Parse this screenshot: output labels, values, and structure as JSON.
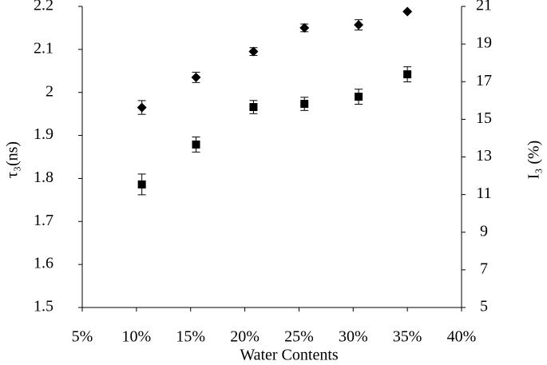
{
  "chart_data": {
    "type": "scatter",
    "x_label": "Water Contents",
    "y_label": "τ₃(ns)",
    "y2_label": "I₃ (%)",
    "xlim": [
      5,
      40
    ],
    "xticks": [
      {
        "value": 5,
        "label": "5%"
      },
      {
        "value": 10,
        "label": "10%"
      },
      {
        "value": 15,
        "label": "15%"
      },
      {
        "value": 20,
        "label": "20%"
      },
      {
        "value": 25,
        "label": "25%"
      },
      {
        "value": 30,
        "label": "30%"
      },
      {
        "value": 35,
        "label": "35%"
      },
      {
        "value": 40,
        "label": "40%"
      }
    ],
    "ylim": [
      1.5,
      2.2
    ],
    "yticks": [
      1.5,
      1.6,
      1.7,
      1.8,
      1.9,
      2.0,
      2.1,
      2.2
    ],
    "y2lim": [
      5,
      21
    ],
    "y2ticks": [
      5,
      7,
      9,
      11,
      13,
      15,
      17,
      19,
      21
    ],
    "grid": false,
    "series": [
      {
        "name": "τ₃",
        "color": "#000000",
        "marker": "diamond",
        "axis": "y",
        "x": [
          10.5,
          15.5,
          20.8,
          25.5,
          30.5,
          35
        ],
        "values": [
          1.965,
          2.035,
          2.095,
          2.15,
          2.157,
          2.188
        ],
        "errors": [
          0.016,
          0.012,
          0.009,
          0.009,
          0.012,
          0
        ]
      },
      {
        "name": "I₃",
        "color": "#000000",
        "marker": "square",
        "axis": "y2",
        "x": [
          10.5,
          15.5,
          20.8,
          25.5,
          30.5,
          35
        ],
        "values": [
          11.54,
          13.66,
          15.65,
          15.82,
          16.2,
          17.39
        ],
        "errors": [
          0.55,
          0.4,
          0.35,
          0.35,
          0.4,
          0.4
        ]
      }
    ]
  }
}
